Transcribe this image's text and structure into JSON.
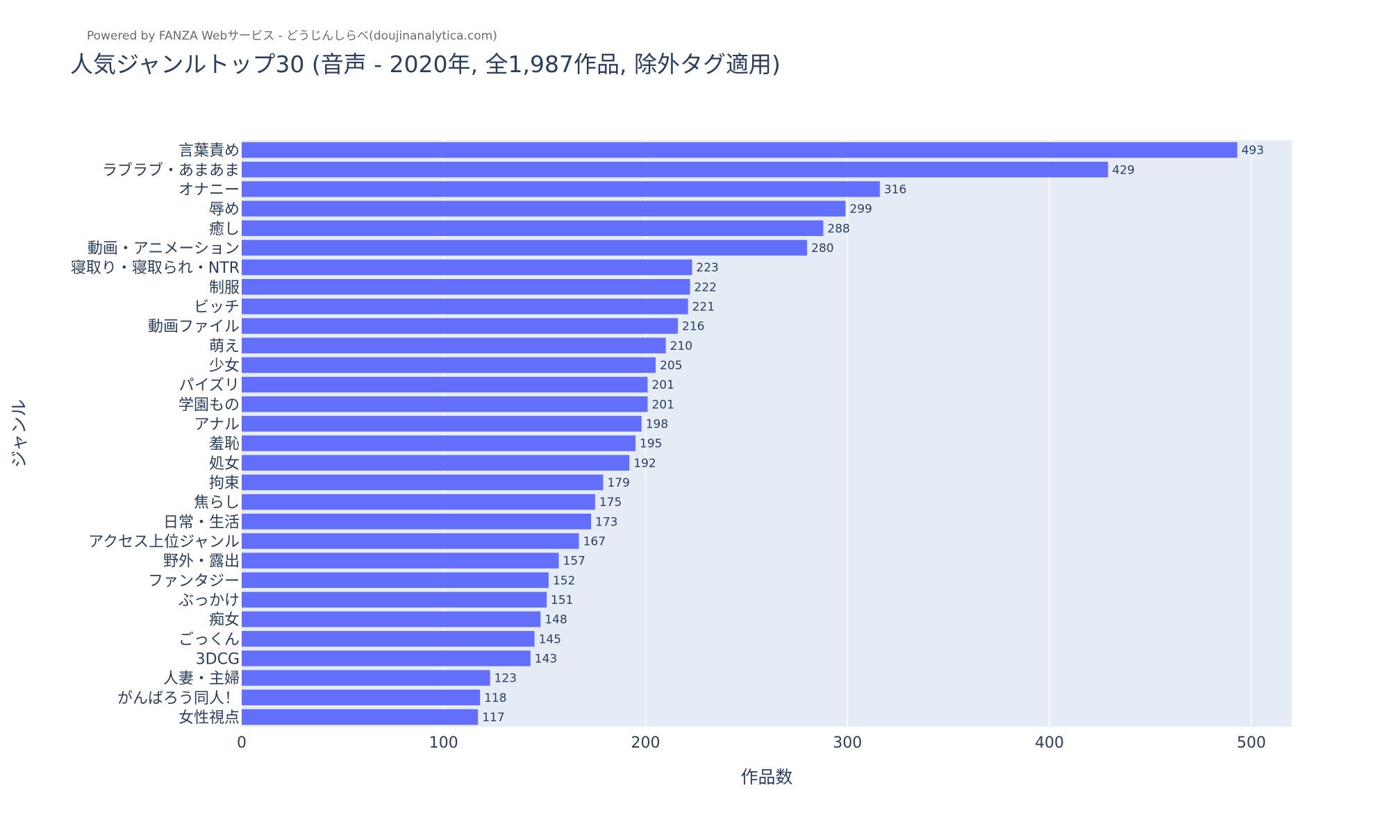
{
  "header": {
    "powered_by": "Powered by FANZA Webサービス - どうじんしらべ(doujinanalytica.com)"
  },
  "chart_data": {
    "type": "bar",
    "orientation": "horizontal",
    "title": "人気ジャンルトップ30 (音声 - 2020年, 全1,987作品, 除外タグ適用)",
    "xlabel": "作品数",
    "ylabel": "ジャンル",
    "xlim": [
      0,
      520
    ],
    "xticks": [
      0,
      100,
      200,
      300,
      400,
      500
    ],
    "grid": true,
    "bar_color": "#636efa",
    "plot_bg": "#e5ecf6",
    "categories": [
      "言葉責め",
      "ラブラブ・あまあま",
      "オナニー",
      "辱め",
      "癒し",
      "動画・アニメーション",
      "寝取り・寝取られ・NTR",
      "制服",
      "ビッチ",
      "動画ファイル",
      "萌え",
      "少女",
      "パイズリ",
      "学園もの",
      "アナル",
      "羞恥",
      "処女",
      "拘束",
      "焦らし",
      "日常・生活",
      "アクセス上位ジャンル",
      "野外・露出",
      "ファンタジー",
      "ぶっかけ",
      "痴女",
      "ごっくん",
      "3DCG",
      "人妻・主婦",
      "がんばろう同人！",
      "女性視点"
    ],
    "values": [
      493,
      429,
      316,
      299,
      288,
      280,
      223,
      222,
      221,
      216,
      210,
      205,
      201,
      201,
      198,
      195,
      192,
      179,
      175,
      173,
      167,
      157,
      152,
      151,
      148,
      145,
      143,
      123,
      118,
      117
    ]
  }
}
